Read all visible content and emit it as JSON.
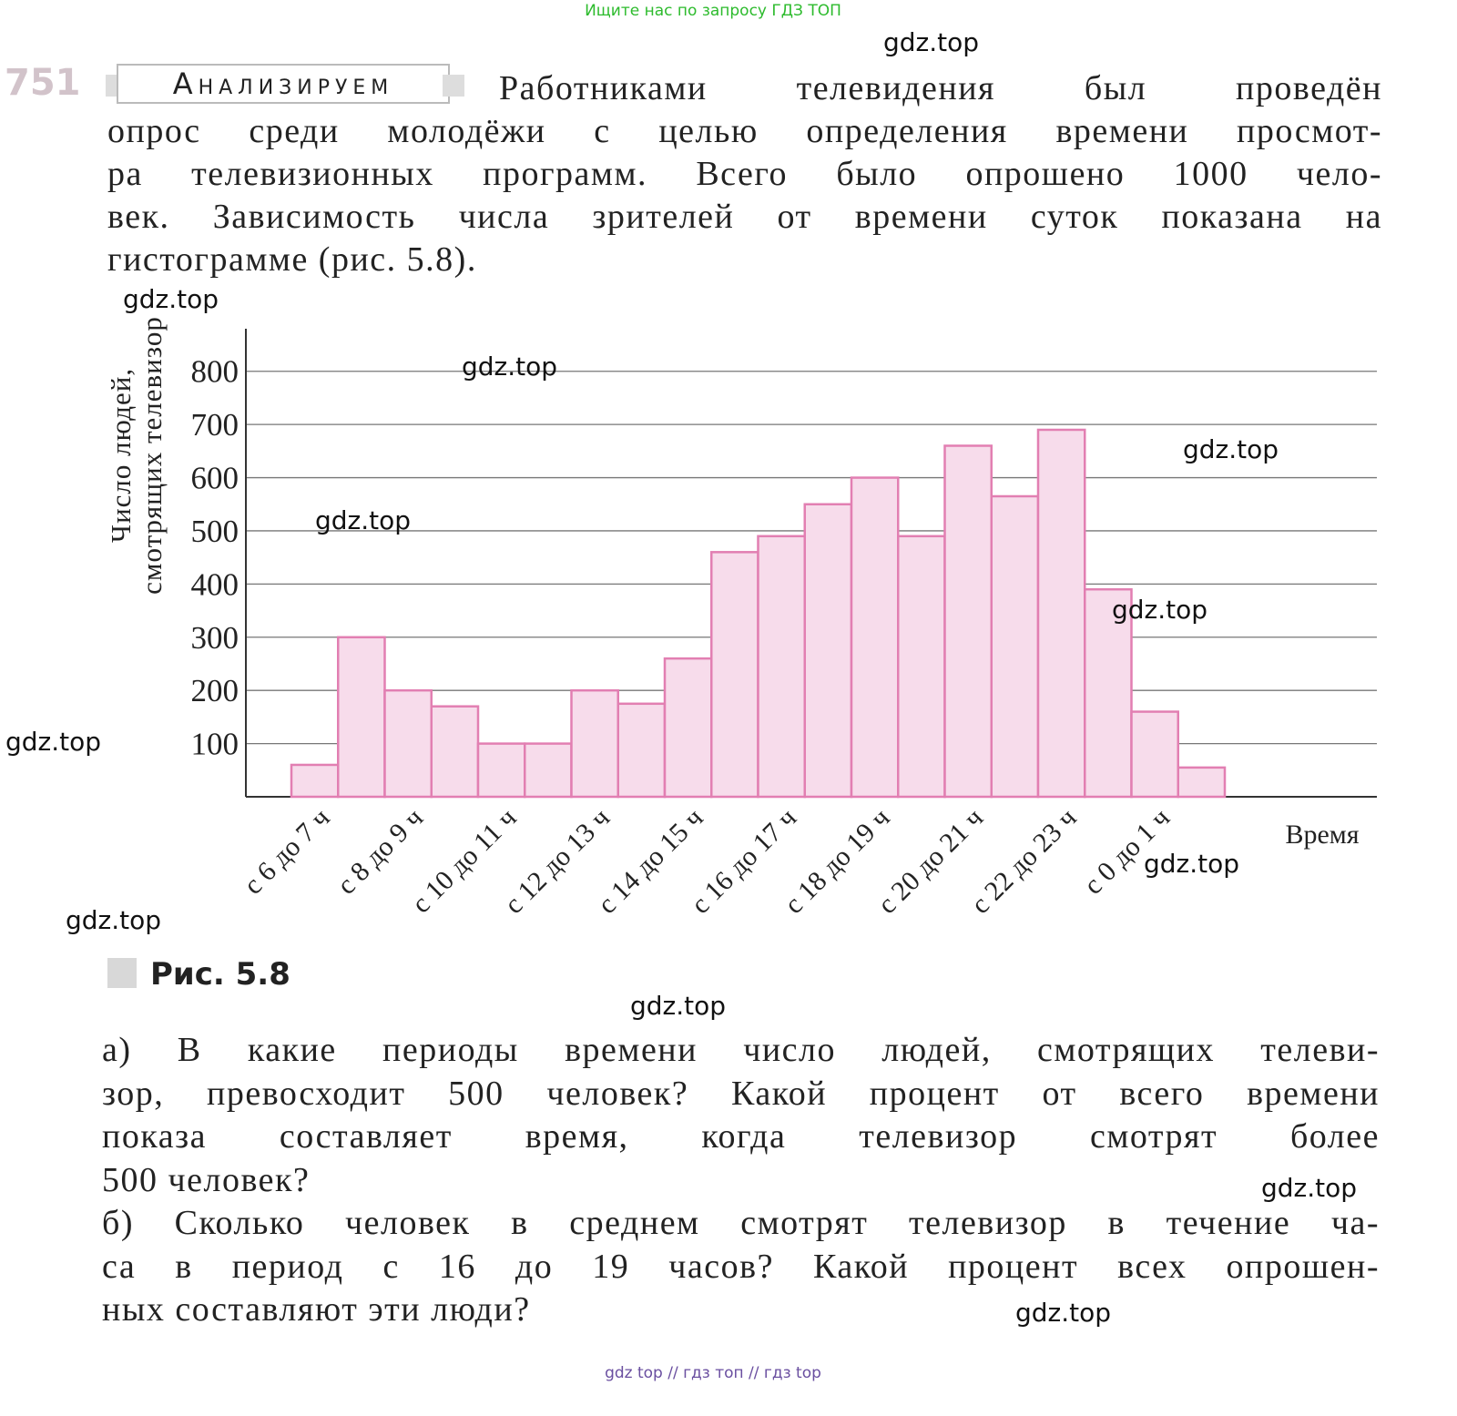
{
  "top_notice": "Ищите нас по запросу ГДЗ ТОП",
  "problem": {
    "number": "751",
    "tag": "Анализируем",
    "intro_lines": [
      "Работниками телевидения был проведён",
      "опрос среди молодёжи с целью определения времени просмот-",
      "ра телевизионных программ. Всего было опрошено 1000 чело-",
      "век. Зависимость числа зрителей от времени суток показана на",
      "гистограмме (рис. 5.8)."
    ],
    "caption": "Рис. 5.8",
    "question_lines": [
      "а) В какие периоды времени число людей, смотрящих телеви-",
      "зор, превосходит 500 человек? Какой процент от всего времени",
      "показа составляет время, когда телевизор смотрят более",
      "500 человек?",
      "б) Сколько человек в среднем смотрят телевизор в течение ча-",
      "са в период с 16 до 19 часов? Какой процент всех опрошен-",
      "ных составляют эти люди?"
    ]
  },
  "chart_data": {
    "type": "bar",
    "y_label": [
      "Число людей,",
      "смотрящих телевизор"
    ],
    "x_label": "Время",
    "categories": [
      "с 6 до 7 ч",
      null,
      "с 8 до 9 ч",
      null,
      "с 10 до 11 ч",
      null,
      "с 12 до 13 ч",
      null,
      "с 14 до 15 ч",
      null,
      "с 16 до 17 ч",
      null,
      "с 18 до 19 ч",
      null,
      "с 20 до 21 ч",
      null,
      "с 22 до 23 ч",
      null,
      "с 0 до 1 ч",
      null
    ],
    "values": [
      60,
      300,
      200,
      170,
      100,
      100,
      200,
      175,
      260,
      460,
      490,
      550,
      600,
      490,
      660,
      565,
      690,
      390,
      160,
      55
    ],
    "color": "#f7dceb",
    "edge_color": "#e27fb2",
    "ylim": [
      0,
      880
    ],
    "yticks": [
      100,
      200,
      300,
      400,
      500,
      600,
      700,
      800
    ],
    "grid": true
  },
  "watermarks": [
    "gdz.top",
    "gdz.top",
    "gdz.top",
    "gdz.top",
    "gdz.top",
    "gdz.top",
    "gdz.top",
    "gdz.top",
    "gdz.top",
    "gdz.top",
    "gdz.top",
    "gdz.top"
  ],
  "footer": "gdz top // гдз топ // гдз top"
}
